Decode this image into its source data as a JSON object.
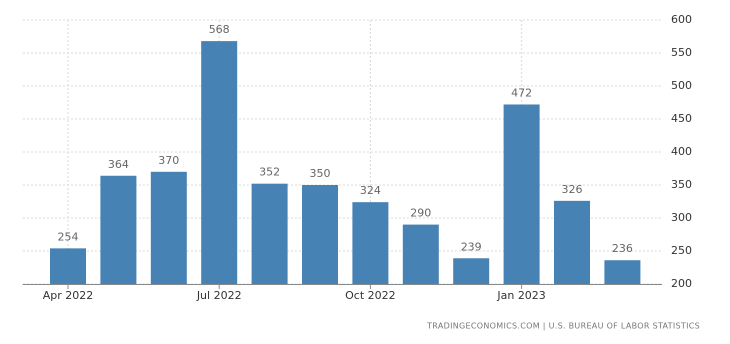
{
  "chart_data": {
    "type": "bar",
    "categories": [
      "Apr 2022",
      null,
      null,
      "Jul 2022",
      null,
      null,
      "Oct 2022",
      null,
      null,
      "Jan 2023",
      null,
      null
    ],
    "values": [
      254,
      364,
      370,
      568,
      352,
      350,
      324,
      290,
      239,
      472,
      326,
      236
    ],
    "color": "#4682b4",
    "ylim": [
      200,
      600
    ],
    "yticks": [
      200,
      250,
      300,
      350,
      400,
      450,
      500,
      550,
      600
    ],
    "grid": true,
    "source": "TRADINGECONOMICS.COM | U.S. BUREAU OF LABOR STATISTICS"
  }
}
